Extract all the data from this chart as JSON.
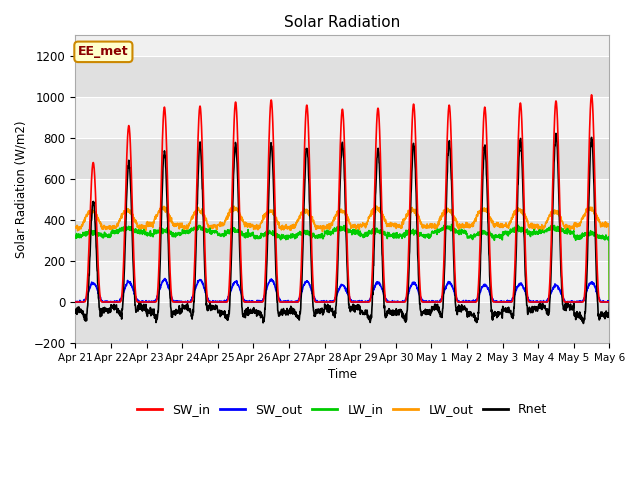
{
  "title": "Solar Radiation",
  "ylabel": "Solar Radiation (W/m2)",
  "xlabel": "Time",
  "ylim": [
    -200,
    1300
  ],
  "yticks": [
    -200,
    0,
    200,
    400,
    600,
    800,
    1000,
    1200
  ],
  "n_days": 15,
  "SW_in_color": "#ff0000",
  "SW_out_color": "#0000ff",
  "LW_in_color": "#00cc00",
  "LW_out_color": "#ff9900",
  "Rnet_color": "#000000",
  "background_color": "#ffffff",
  "plot_bg_light": "#f0f0f0",
  "plot_bg_dark": "#e0e0e0",
  "annotation_text": "EE_met",
  "annotation_bg": "#ffffcc",
  "annotation_border": "#cc8800",
  "legend_entries": [
    "SW_in",
    "SW_out",
    "LW_in",
    "LW_out",
    "Rnet"
  ],
  "linewidth": 1.2,
  "tick_labels": [
    "Apr 21",
    "Apr 22",
    "Apr 23",
    "Apr 24",
    "Apr 25",
    "Apr 26",
    "Apr 27",
    "Apr 28",
    "Apr 29",
    "Apr 30",
    "May 1",
    "May 2",
    "May 3",
    "May 4",
    "May 5",
    "May 6"
  ]
}
